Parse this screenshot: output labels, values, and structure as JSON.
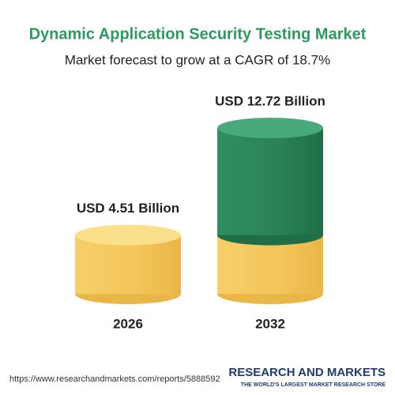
{
  "chart_data": {
    "type": "cylinder",
    "title": "Dynamic Application Security Testing Market",
    "subtitle": "Market forecast to grow at a CAGR of 18.7%",
    "categories": [
      "2026",
      "2032"
    ],
    "values": [
      4.51,
      12.72
    ],
    "value_labels": [
      "USD 4.51 Billion",
      "USD 12.72 Billion"
    ],
    "colors": [
      "#f3c75a",
      "#2f8a5c"
    ],
    "source": "https://www.researchandmarkets.com/reports/5888592",
    "brand": "RESEARCH AND MARKETS",
    "brand_tagline": "THE WORLD'S LARGEST MARKET RESEARCH STORE"
  }
}
